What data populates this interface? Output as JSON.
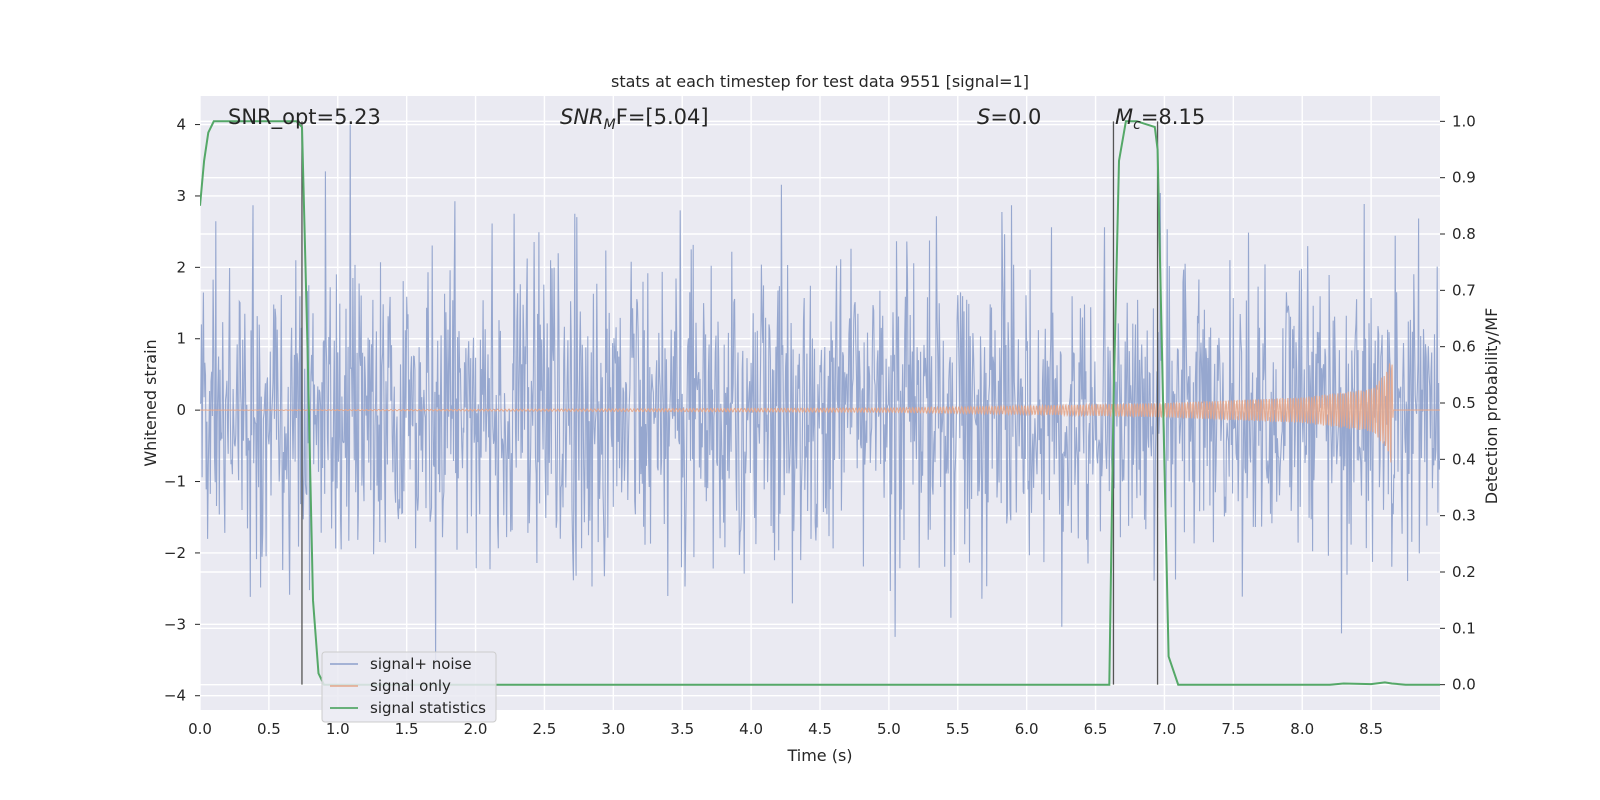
{
  "chart_data": {
    "type": "line",
    "title": "stats at each timestep for test data 9551 [signal=1]",
    "xlabel": "Time (s)",
    "ylabel_left": "Whitened strain",
    "ylabel_right": "Detection probability/MF",
    "xlim": [
      0.0,
      9.0
    ],
    "ylim_left": [
      -4.2,
      4.4
    ],
    "ylim_right": [
      -0.045,
      1.045
    ],
    "x_ticks": [
      "0.0",
      "0.5",
      "1.0",
      "1.5",
      "2.0",
      "2.5",
      "3.0",
      "3.5",
      "4.0",
      "4.5",
      "5.0",
      "5.5",
      "6.0",
      "6.5",
      "7.0",
      "7.5",
      "8.0",
      "8.5"
    ],
    "y_ticks_left": [
      "4",
      "3",
      "2",
      "1",
      "0",
      "−1",
      "−2",
      "−3",
      "−4"
    ],
    "y_ticks_right": [
      "1.0",
      "0.9",
      "0.8",
      "0.7",
      "0.6",
      "0.5",
      "0.4",
      "0.3",
      "0.2",
      "0.1",
      "0.0"
    ],
    "grid": true,
    "legend_position": "lower-left",
    "annotations": {
      "snr_opt": "SNR_opt=5.23",
      "snr_mf_main": "SNR",
      "snr_mf_sub": "M",
      "snr_mf_rest": "F=[5.04]",
      "s_main": "S",
      "s_rest": "=0.0",
      "mc_main": "M",
      "mc_sub": "c",
      "mc_rest": "=8.15"
    },
    "vertical_lines_x": [
      0.74,
      6.63,
      6.95
    ],
    "series": [
      {
        "name": "signal+ noise",
        "color": "#8da0cb",
        "axis": "left",
        "description_values": "noise-dominated strain, approx. between -3.3 and 4.0"
      },
      {
        "name": "signal only",
        "color": "#e5a68a",
        "axis": "left",
        "envelope": {
          "x": [
            0.0,
            5.0,
            6.0,
            7.0,
            8.0,
            8.5,
            8.6,
            8.65,
            8.66
          ],
          "amp": [
            0.0,
            0.03,
            0.06,
            0.1,
            0.18,
            0.3,
            0.5,
            0.82,
            0.0
          ]
        }
      },
      {
        "name": "signal statistics",
        "color": "#55a868",
        "axis": "right",
        "x": [
          0.0,
          0.03,
          0.06,
          0.1,
          0.7,
          0.74,
          0.78,
          0.82,
          0.86,
          0.9,
          6.55,
          6.6,
          6.63,
          6.67,
          6.72,
          6.8,
          6.93,
          6.95,
          6.99,
          7.03,
          7.1,
          7.2,
          7.5,
          8.2,
          8.3,
          8.5,
          8.6,
          8.65,
          8.75,
          9.0
        ],
        "y": [
          0.85,
          0.93,
          0.98,
          1.0,
          1.0,
          0.99,
          0.6,
          0.15,
          0.02,
          0.0,
          0.0,
          0.0,
          0.5,
          0.93,
          1.0,
          1.0,
          0.99,
          0.95,
          0.5,
          0.05,
          0.0,
          0.0,
          0.0,
          0.0,
          0.002,
          0.001,
          0.004,
          0.002,
          0.0,
          0.0
        ]
      }
    ]
  }
}
